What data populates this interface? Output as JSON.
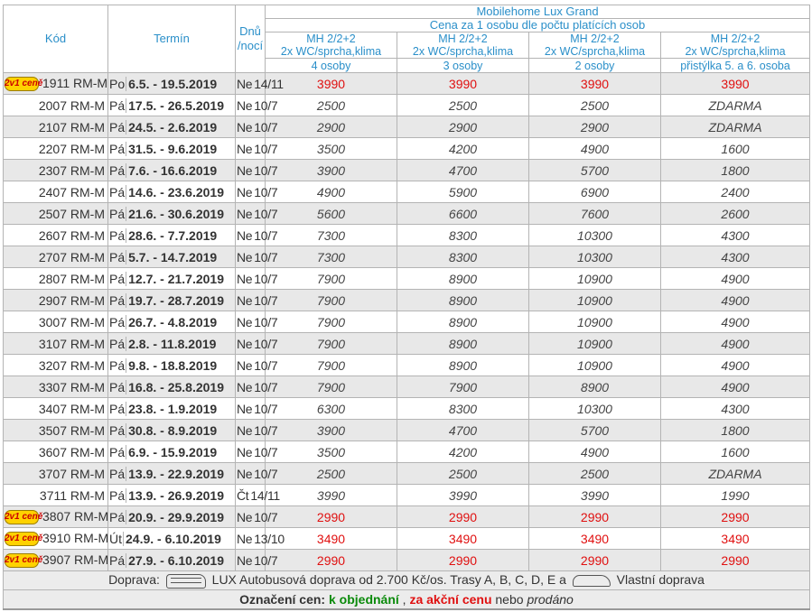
{
  "header": {
    "code": "Kód",
    "term": "Termín",
    "nights": "Dnů /nocí",
    "product": "Mobilehome Lux Grand",
    "price_note": "Cena za 1 osobu dle počtu platících osob",
    "columns": [
      {
        "line1": "MH 2/2+2",
        "line2": "2x WC/sprcha,klima",
        "line3": "4 osoby"
      },
      {
        "line1": "MH 2/2+2",
        "line2": "2x WC/sprcha,klima",
        "line3": "3 osoby"
      },
      {
        "line1": "MH 2/2+2",
        "line2": "2x WC/sprcha,klima",
        "line3": "2 osoby"
      },
      {
        "line1": "MH 2/2+2",
        "line2": "2x WC/sprcha,klima",
        "line3": "přistýlka 5. a 6. osoba"
      }
    ]
  },
  "badge_text": "2v1 ceně",
  "rows": [
    {
      "badge": true,
      "code": "1911 RM-M",
      "day": "Po",
      "date": "6.5. - 19.5.2019",
      "day2": "Ne",
      "nights": "14/11",
      "prices": [
        "3990",
        "3990",
        "3990",
        "3990"
      ],
      "red": true
    },
    {
      "badge": false,
      "code": "2007 RM-M",
      "day": "Pá",
      "date": "17.5. - 26.5.2019",
      "day2": "Ne",
      "nights": "10/7",
      "prices": [
        "2500",
        "2500",
        "2500",
        "ZDARMA"
      ],
      "red": false
    },
    {
      "badge": false,
      "code": "2107 RM-M",
      "day": "Pá",
      "date": "24.5. - 2.6.2019",
      "day2": "Ne",
      "nights": "10/7",
      "prices": [
        "2900",
        "2900",
        "2900",
        "ZDARMA"
      ],
      "red": false
    },
    {
      "badge": false,
      "code": "2207 RM-M",
      "day": "Pá",
      "date": "31.5. - 9.6.2019",
      "day2": "Ne",
      "nights": "10/7",
      "prices": [
        "3500",
        "4200",
        "4900",
        "1600"
      ],
      "red": false
    },
    {
      "badge": false,
      "code": "2307 RM-M",
      "day": "Pá",
      "date": "7.6. - 16.6.2019",
      "day2": "Ne",
      "nights": "10/7",
      "prices": [
        "3900",
        "4700",
        "5700",
        "1800"
      ],
      "red": false
    },
    {
      "badge": false,
      "code": "2407 RM-M",
      "day": "Pá",
      "date": "14.6. - 23.6.2019",
      "day2": "Ne",
      "nights": "10/7",
      "prices": [
        "4900",
        "5900",
        "6900",
        "2400"
      ],
      "red": false
    },
    {
      "badge": false,
      "code": "2507 RM-M",
      "day": "Pá",
      "date": "21.6. - 30.6.2019",
      "day2": "Ne",
      "nights": "10/7",
      "prices": [
        "5600",
        "6600",
        "7600",
        "2600"
      ],
      "red": false
    },
    {
      "badge": false,
      "code": "2607 RM-M",
      "day": "Pá",
      "date": "28.6. - 7.7.2019",
      "day2": "Ne",
      "nights": "10/7",
      "prices": [
        "7300",
        "8300",
        "10300",
        "4300"
      ],
      "red": false
    },
    {
      "badge": false,
      "code": "2707 RM-M",
      "day": "Pá",
      "date": "5.7. - 14.7.2019",
      "day2": "Ne",
      "nights": "10/7",
      "prices": [
        "7300",
        "8300",
        "10300",
        "4300"
      ],
      "red": false
    },
    {
      "badge": false,
      "code": "2807 RM-M",
      "day": "Pá",
      "date": "12.7. - 21.7.2019",
      "day2": "Ne",
      "nights": "10/7",
      "prices": [
        "7900",
        "8900",
        "10900",
        "4900"
      ],
      "red": false
    },
    {
      "badge": false,
      "code": "2907 RM-M",
      "day": "Pá",
      "date": "19.7. - 28.7.2019",
      "day2": "Ne",
      "nights": "10/7",
      "prices": [
        "7900",
        "8900",
        "10900",
        "4900"
      ],
      "red": false
    },
    {
      "badge": false,
      "code": "3007 RM-M",
      "day": "Pá",
      "date": "26.7. - 4.8.2019",
      "day2": "Ne",
      "nights": "10/7",
      "prices": [
        "7900",
        "8900",
        "10900",
        "4900"
      ],
      "red": false
    },
    {
      "badge": false,
      "code": "3107 RM-M",
      "day": "Pá",
      "date": "2.8. - 11.8.2019",
      "day2": "Ne",
      "nights": "10/7",
      "prices": [
        "7900",
        "8900",
        "10900",
        "4900"
      ],
      "red": false
    },
    {
      "badge": false,
      "code": "3207 RM-M",
      "day": "Pá",
      "date": "9.8. - 18.8.2019",
      "day2": "Ne",
      "nights": "10/7",
      "prices": [
        "7900",
        "8900",
        "10900",
        "4900"
      ],
      "red": false
    },
    {
      "badge": false,
      "code": "3307 RM-M",
      "day": "Pá",
      "date": "16.8. - 25.8.2019",
      "day2": "Ne",
      "nights": "10/7",
      "prices": [
        "7900",
        "7900",
        "8900",
        "4900"
      ],
      "red": false
    },
    {
      "badge": false,
      "code": "3407 RM-M",
      "day": "Pá",
      "date": "23.8. - 1.9.2019",
      "day2": "Ne",
      "nights": "10/7",
      "prices": [
        "6300",
        "8300",
        "10300",
        "4300"
      ],
      "red": false
    },
    {
      "badge": false,
      "code": "3507 RM-M",
      "day": "Pá",
      "date": "30.8. - 8.9.2019",
      "day2": "Ne",
      "nights": "10/7",
      "prices": [
        "3900",
        "4700",
        "5700",
        "1800"
      ],
      "red": false
    },
    {
      "badge": false,
      "code": "3607 RM-M",
      "day": "Pá",
      "date": "6.9. - 15.9.2019",
      "day2": "Ne",
      "nights": "10/7",
      "prices": [
        "3500",
        "4200",
        "4900",
        "1600"
      ],
      "red": false
    },
    {
      "badge": false,
      "code": "3707 RM-M",
      "day": "Pá",
      "date": "13.9. - 22.9.2019",
      "day2": "Ne",
      "nights": "10/7",
      "prices": [
        "2500",
        "2500",
        "2500",
        "ZDARMA"
      ],
      "red": false
    },
    {
      "badge": false,
      "code": "3711 RM-M",
      "day": "Pá",
      "date": "13.9. - 26.9.2019",
      "day2": "Čt",
      "nights": "14/11",
      "prices": [
        "3990",
        "3990",
        "3990",
        "1990"
      ],
      "red": false
    },
    {
      "badge": true,
      "code": "3807 RM-M",
      "day": "Pá",
      "date": "20.9. - 29.9.2019",
      "day2": "Ne",
      "nights": "10/7",
      "prices": [
        "2990",
        "2990",
        "2990",
        "2990"
      ],
      "red": true
    },
    {
      "badge": true,
      "code": "3910 RM-M",
      "day": "Út",
      "date": "24.9. - 6.10.2019",
      "day2": "Ne",
      "nights": "13/10",
      "prices": [
        "3490",
        "3490",
        "3490",
        "3490"
      ],
      "red": true
    },
    {
      "badge": true,
      "code": "3907 RM-M",
      "day": "Pá",
      "date": "27.9. - 6.10.2019",
      "day2": "Ne",
      "nights": "10/7",
      "prices": [
        "2990",
        "2990",
        "2990",
        "2990"
      ],
      "red": true
    }
  ],
  "footer": {
    "transport_label": "Doprava:",
    "transport_text": "LUX Autobusová doprava od 2.700 Kč/os. Trasy A, B, C, D, E a",
    "own_transport": "Vlastní doprava",
    "legend_label": "Označení cen:",
    "legend_order": "k objednání",
    "legend_sep1": ",",
    "legend_action": "za akční cenu",
    "legend_sep2": "nebo",
    "legend_sold": "prodáno"
  },
  "colors": {
    "header_blue": "#2a8fc9",
    "action_red": "#e01010",
    "order_green": "#0a8a0a",
    "row_alt": "#e8e8e8"
  }
}
